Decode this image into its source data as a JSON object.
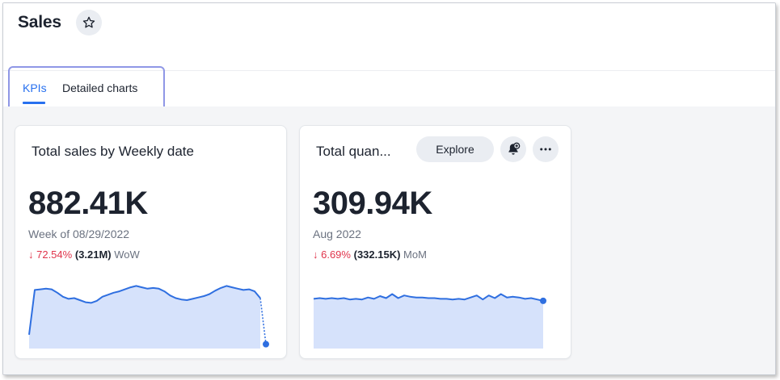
{
  "page": {
    "title": "Sales",
    "tabs": [
      {
        "label": "KPIs",
        "active": true
      },
      {
        "label": "Detailed charts",
        "active": false
      }
    ]
  },
  "colors": {
    "accent": "#2770ef",
    "negative": "#e0344b",
    "spark_line": "#2f6fe0",
    "spark_fill": "#d6e2fb"
  },
  "cards": [
    {
      "title": "Total sales by Weekly date",
      "value": "882.41K",
      "period_label": "Week of 08/29/2022",
      "change_pct": "↓ 72.54%",
      "change_abs": "(3.21M)",
      "change_period": "WoW",
      "actions": []
    },
    {
      "title": "Total quan...",
      "value": "309.94K",
      "period_label": "Aug 2022",
      "change_pct": "↓ 6.69%",
      "change_abs": "(332.15K)",
      "change_period": "MoM",
      "actions": [
        {
          "label": "Explore"
        },
        {
          "icon": "bell-plus-icon"
        },
        {
          "icon": "more-icon"
        }
      ]
    }
  ],
  "chart_data": [
    {
      "type": "area",
      "title": "",
      "ylim": [
        0,
        100
      ],
      "values": [
        18,
        84,
        85,
        86,
        85,
        80,
        74,
        71,
        72,
        69,
        66,
        65,
        68,
        74,
        77,
        80,
        82,
        85,
        88,
        90,
        88,
        86,
        87,
        86,
        82,
        76,
        72,
        70,
        69,
        71,
        73,
        75,
        78,
        83,
        87,
        90,
        88,
        86,
        84,
        85,
        82,
        72,
        4
      ],
      "last_segment_dotted": true
    },
    {
      "type": "area",
      "title": "",
      "ylim": [
        0,
        100
      ],
      "values": [
        71,
        72,
        71,
        72,
        71,
        72,
        70,
        71,
        70,
        73,
        71,
        75,
        72,
        78,
        72,
        76,
        74,
        73,
        73,
        72,
        72,
        71,
        71,
        70,
        71,
        70,
        73,
        76,
        70,
        76,
        72,
        78,
        73,
        74,
        73,
        71,
        72,
        70,
        68
      ],
      "last_segment_dotted": false
    }
  ]
}
